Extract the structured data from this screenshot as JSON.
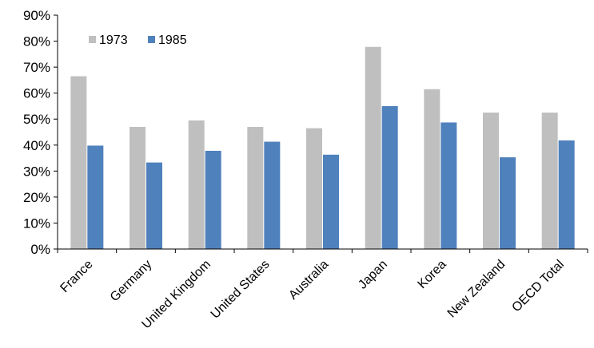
{
  "chart_data": {
    "type": "bar",
    "categories": [
      "France",
      "Germany",
      "United Kingdom",
      "United States",
      "Australia",
      "Japan",
      "Korea",
      "New Zealand",
      "OECD Total"
    ],
    "series": [
      {
        "name": "1973",
        "color": "#bfbfbf",
        "values": [
          66.5,
          47.0,
          49.5,
          47.0,
          46.5,
          77.8,
          61.5,
          52.5,
          52.5
        ]
      },
      {
        "name": "1985",
        "color": "#4f81bd",
        "values": [
          39.8,
          33.3,
          37.8,
          41.3,
          36.3,
          55.0,
          48.7,
          35.3,
          41.8
        ]
      }
    ],
    "yticks": [
      "0%",
      "10%",
      "20%",
      "30%",
      "40%",
      "50%",
      "60%",
      "70%",
      "80%",
      "90%"
    ],
    "ylim": [
      0,
      90
    ],
    "legend_position": "top-left",
    "grid": false
  }
}
